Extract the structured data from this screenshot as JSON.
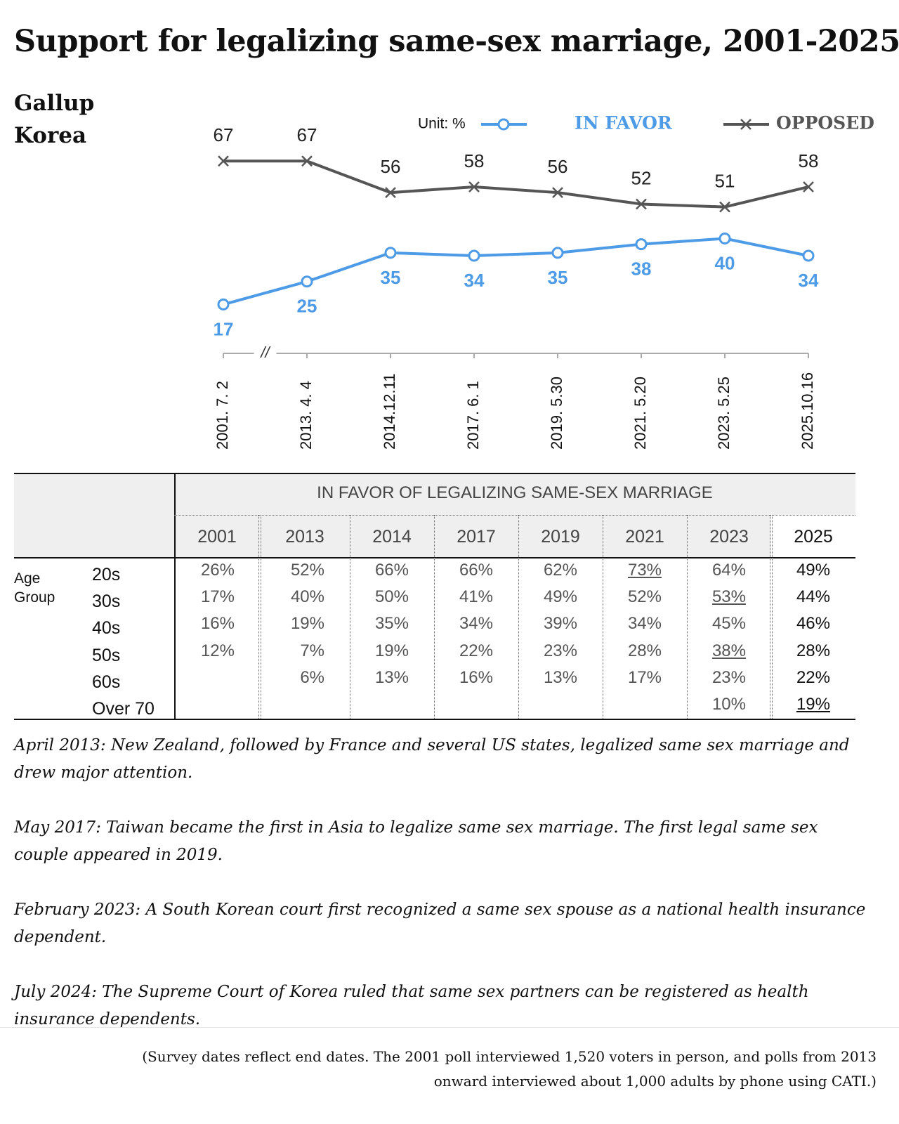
{
  "header": {
    "title": "Support for legalizing same-sex marriage, 2001-2025",
    "source": [
      "Gallup",
      "Korea"
    ]
  },
  "chart_data": {
    "type": "line",
    "unit_label": "Unit: %",
    "axis_break": "//",
    "categories": [
      "2001. 7. 2",
      "2013. 4. 4",
      "2014.12.11",
      "2017. 6. 1",
      "2019. 5.30",
      "2021. 5.20",
      "2023. 5.25",
      "2025.10.16"
    ],
    "ylim": [
      10,
      70
    ],
    "series": [
      {
        "name": "IN FAVOR",
        "color": "#4d9be6",
        "marker": "circle",
        "values": [
          17,
          25,
          35,
          34,
          35,
          38,
          40,
          34
        ]
      },
      {
        "name": "OPPOSED",
        "color": "#555555",
        "marker": "x",
        "values": [
          67,
          67,
          56,
          58,
          56,
          52,
          51,
          58
        ]
      }
    ]
  },
  "table": {
    "title": "IN FAVOR OF LEGALIZING SAME-SEX MARRIAGE",
    "columns": [
      "2001",
      "2013",
      "2014",
      "2017",
      "2019",
      "2021",
      "2023",
      "2025"
    ],
    "row_group": [
      "Age",
      "Group"
    ],
    "row_labels": [
      "20s",
      "30s",
      "40s",
      "50s",
      "60s",
      "Over 70"
    ],
    "rows": [
      [
        "26%",
        "52%",
        "66%",
        "66%",
        "62%",
        "73%",
        "64%",
        "49%"
      ],
      [
        "17%",
        "40%",
        "50%",
        "41%",
        "49%",
        "52%",
        "53%",
        "44%"
      ],
      [
        "16%",
        "19%",
        "35%",
        "34%",
        "39%",
        "34%",
        "45%",
        "46%"
      ],
      [
        "12%",
        "7%",
        "19%",
        "22%",
        "23%",
        "28%",
        "38%",
        "28%"
      ],
      [
        null,
        "6%",
        "13%",
        "16%",
        "13%",
        "17%",
        "23%",
        "22%"
      ],
      [
        null,
        null,
        null,
        null,
        null,
        null,
        "10%",
        "19%"
      ]
    ],
    "underlined": [
      [
        0,
        5
      ],
      [
        1,
        6
      ],
      [
        3,
        6
      ],
      [
        5,
        7
      ]
    ]
  },
  "notes": [
    "April 2013: New Zealand, followed by France and several US states, legalized same sex marriage and drew major attention.",
    "May 2017: Taiwan became the first in Asia to legalize same sex marriage. The first legal same sex couple appeared in 2019.",
    "February 2023: A South Korean court first recognized a same sex spouse as a national health insurance dependent.",
    "July 2024: The Supreme Court of Korea ruled that same sex partners can be registered as health insurance dependents."
  ],
  "footnote": "(Survey dates reflect end dates. The 2001 poll interviewed 1,520 voters in person, and polls from 2013 onward interviewed about 1,000 adults by phone using CATI.)"
}
